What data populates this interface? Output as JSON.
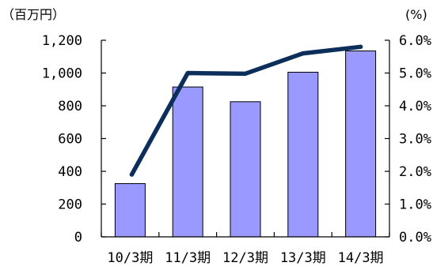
{
  "chart_data": {
    "type": "bar",
    "categories": [
      "10/3期",
      "11/3期",
      "12/3期",
      "13/3期",
      "14/3期"
    ],
    "series": [
      {
        "type": "bar",
        "axis": "left",
        "values": [
          325,
          915,
          825,
          1005,
          1135
        ]
      },
      {
        "type": "line",
        "axis": "right",
        "values": [
          1.9,
          5.0,
          4.98,
          5.6,
          5.8
        ]
      }
    ],
    "left_axis": {
      "unit_label": "（百万円）",
      "ylim": [
        0,
        1200
      ],
      "ticks": [
        0,
        200,
        400,
        600,
        800,
        1000,
        1200
      ],
      "tick_labels": [
        "0",
        "200",
        "400",
        "600",
        "800",
        "1,000",
        "1,200"
      ]
    },
    "right_axis": {
      "unit_label": "(%)",
      "ylim": [
        0,
        6
      ],
      "ticks": [
        0,
        1,
        2,
        3,
        4,
        5,
        6
      ],
      "tick_labels": [
        "0.0%",
        "1.0%",
        "2.0%",
        "3.0%",
        "4.0%",
        "5.0%",
        "6.0%"
      ]
    },
    "colors": {
      "bar": "#9999ff",
      "line": "#0b2f5a"
    },
    "grid": false,
    "legend": "none"
  }
}
